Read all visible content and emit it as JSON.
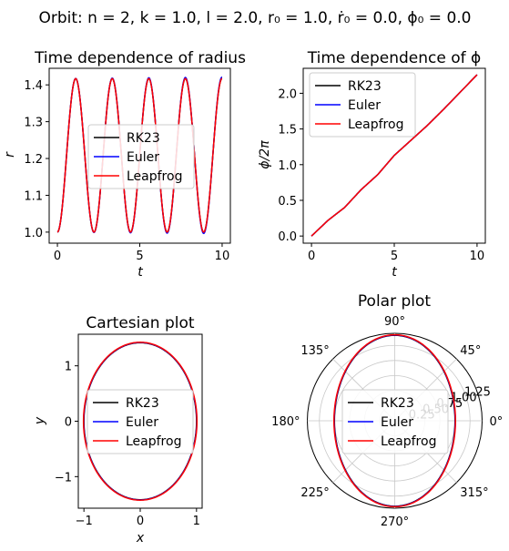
{
  "suptitle": "Orbit:   n = 2,  k = 1.0,  l = 2.0,  r₀ = 1.0,  ṙ₀ = 0.0,  ϕ₀ = 0.0",
  "colors": {
    "RK23": "#000000",
    "Euler": "#0000ff",
    "Leapfrog": "#ff0000"
  },
  "chart_data": [
    {
      "type": "line",
      "title": "Time dependence of radius",
      "xlabel": "t",
      "ylabel": "r",
      "xlim": [
        -0.5,
        10.5
      ],
      "ylim": [
        0.97,
        1.445
      ],
      "xticks": [
        "0",
        "5",
        "10"
      ],
      "yticks": [
        "1.0",
        "1.1",
        "1.2",
        "1.3",
        "1.4"
      ],
      "legend_position": "center-left",
      "model": {
        "r_min": 1.0,
        "r_max": 1.417,
        "period": 2.22
      },
      "series": [
        {
          "name": "RK23",
          "x_range": [
            0,
            10
          ],
          "euler_drift": 0
        },
        {
          "name": "Euler",
          "x_range": [
            0,
            10
          ],
          "euler_drift": 0.012
        },
        {
          "name": "Leapfrog",
          "x_range": [
            0,
            10
          ],
          "euler_drift": 0
        }
      ]
    },
    {
      "type": "line",
      "title": "Time dependence of ϕ",
      "xlabel": "t",
      "ylabel": "ϕ/2π",
      "xlim": [
        -0.5,
        10.5
      ],
      "ylim": [
        -0.1,
        2.35
      ],
      "xticks": [
        "0",
        "5",
        "10"
      ],
      "yticks": [
        "0.0",
        "0.5",
        "1.0",
        "1.5",
        "2.0"
      ],
      "legend_position": "upper-left",
      "x": [
        0,
        1,
        2,
        3,
        4,
        5,
        6,
        7,
        8,
        9,
        10
      ],
      "series": [
        {
          "name": "RK23",
          "values": [
            0,
            0.22,
            0.4,
            0.65,
            0.86,
            1.13,
            1.34,
            1.55,
            1.78,
            2.02,
            2.26
          ]
        },
        {
          "name": "Euler",
          "values": [
            0,
            0.22,
            0.4,
            0.65,
            0.86,
            1.13,
            1.34,
            1.55,
            1.78,
            2.02,
            2.26
          ]
        },
        {
          "name": "Leapfrog",
          "values": [
            0,
            0.22,
            0.4,
            0.65,
            0.86,
            1.13,
            1.34,
            1.55,
            1.78,
            2.02,
            2.26
          ]
        }
      ]
    },
    {
      "type": "line",
      "title": "Cartesian plot",
      "xlabel": "x",
      "ylabel": "y",
      "xlim": [
        -1.1,
        1.1
      ],
      "ylim": [
        -1.57,
        1.57
      ],
      "xticks": [
        "−1",
        "0",
        "1"
      ],
      "yticks": [
        "−1",
        "0",
        "1"
      ],
      "legend_position": "center",
      "orbit": {
        "x_extent": 1.0,
        "y_extent": 1.417
      },
      "series": [
        {
          "name": "RK23"
        },
        {
          "name": "Euler"
        },
        {
          "name": "Leapfrog"
        }
      ]
    },
    {
      "type": "line",
      "title": "Polar plot",
      "projection": "polar",
      "rmax": 1.45,
      "angle_labels": [
        "0°",
        "45°",
        "90°",
        "135°",
        "180°",
        "225°",
        "270°",
        "315°"
      ],
      "radial_labels": [
        "0.25",
        "0.50",
        "0.75",
        "1.00",
        "1.25"
      ],
      "legend_position": "center",
      "series": [
        {
          "name": "RK23"
        },
        {
          "name": "Euler"
        },
        {
          "name": "Leapfrog"
        }
      ]
    }
  ]
}
